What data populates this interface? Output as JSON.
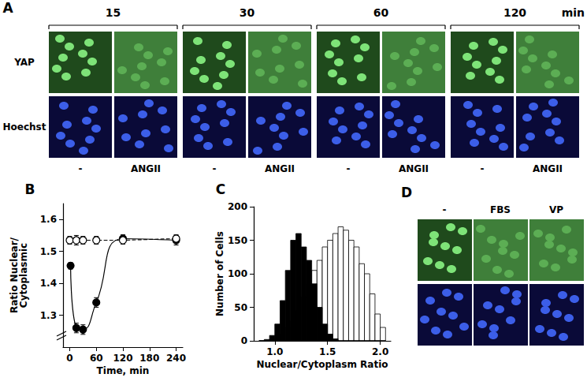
{
  "panel_A": {
    "label": "A",
    "times": [
      15,
      30,
      60,
      120
    ],
    "time_unit": "min",
    "rows": [
      "YAP",
      "Hoechst"
    ],
    "conditions": [
      "-",
      "ANGII"
    ]
  },
  "chart_data": [
    {
      "type": "line",
      "title": "B",
      "xlabel": "Time, min",
      "ylabel": "Ratio Nuclear/\nCytoplasmic",
      "xlim": [
        -15,
        255
      ],
      "xticks": [
        0,
        60,
        120,
        180,
        240
      ],
      "ylim": [
        1.2,
        1.65
      ],
      "yticks": [
        1.3,
        1.4,
        1.5,
        1.6
      ],
      "grid": false,
      "series": [
        {
          "color": "#000000",
          "marker": "open_circle",
          "line_style": "dashed",
          "x": [
            0,
            15,
            30,
            60,
            120,
            240
          ],
          "values": [
            1.535,
            1.535,
            1.535,
            1.535,
            1.535,
            1.54
          ],
          "errors": [
            0.012,
            0.015,
            0.012,
            0.012,
            0.012,
            0.012
          ]
        },
        {
          "color": "#000000",
          "marker": "filled_circle",
          "line_style": "solid",
          "x": [
            2,
            15,
            30,
            60,
            120,
            240
          ],
          "values": [
            1.455,
            1.26,
            1.255,
            1.34,
            1.54,
            1.535
          ],
          "errors": [
            0.01,
            0.015,
            0.015,
            0.015,
            0.012,
            0.015
          ]
        }
      ]
    },
    {
      "type": "histogram",
      "title": "C",
      "xlabel": "Nuclear/Cytoplasm Ratio",
      "ylabel": "Number of Cells",
      "bins": [
        0.85,
        0.9,
        0.95,
        1.0,
        1.05,
        1.1,
        1.15,
        1.2,
        1.25,
        1.3,
        1.35,
        1.4,
        1.45,
        1.5,
        1.55,
        1.6,
        1.65,
        1.7,
        1.75,
        1.8,
        1.85,
        1.9,
        1.95,
        2.0,
        2.05
      ],
      "xlim": [
        0.8,
        2.1
      ],
      "xticks": [
        {
          "value": 1,
          "label": "1.0"
        },
        {
          "value": 1.5,
          "label": "1.5"
        },
        {
          "value": 2,
          "label": "2.0"
        }
      ],
      "ylim": [
        0,
        200
      ],
      "yticks": [
        0,
        50,
        100,
        150,
        200
      ],
      "grid": false,
      "series": [
        {
          "color": "#ffffff",
          "values": [
            0,
            0,
            2,
            5,
            10,
            20,
            30,
            45,
            65,
            85,
            105,
            120,
            140,
            150,
            160,
            170,
            165,
            150,
            140,
            115,
            100,
            70,
            40,
            20
          ]
        },
        {
          "color": "#000000",
          "values": [
            0,
            2,
            8,
            25,
            60,
            105,
            150,
            160,
            140,
            120,
            85,
            50,
            25,
            10,
            3,
            0,
            0,
            0,
            0,
            0,
            0,
            0,
            0,
            0
          ]
        }
      ]
    }
  ],
  "panel_D": {
    "label": "D",
    "conditions": [
      "-",
      "FBS",
      "VP"
    ]
  }
}
